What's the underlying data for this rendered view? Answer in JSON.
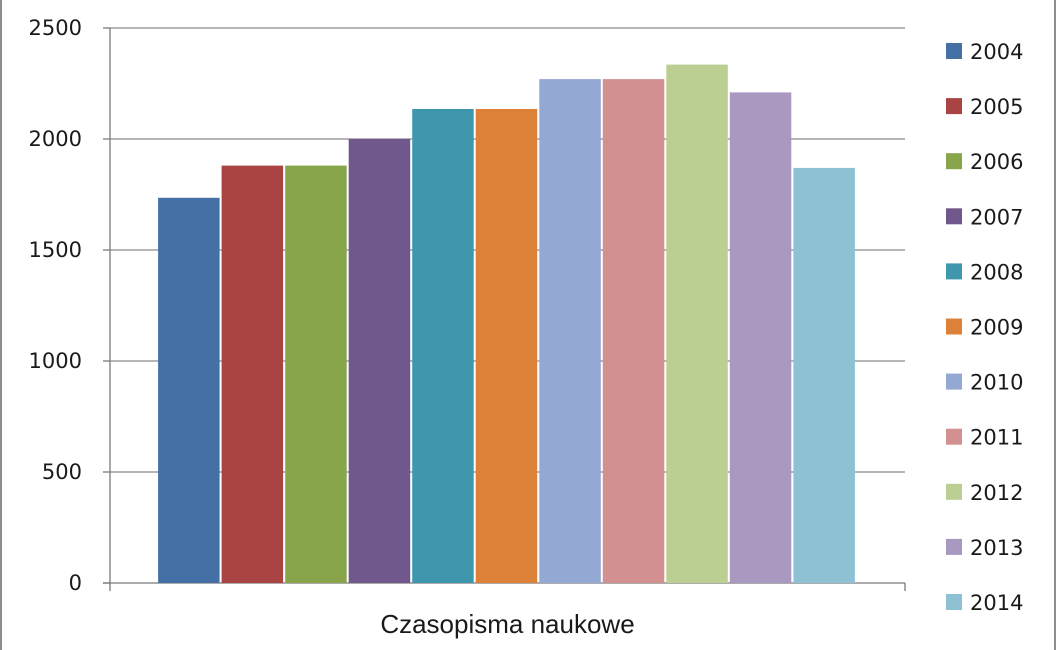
{
  "chart_data": {
    "type": "bar",
    "title": "",
    "xlabel": "",
    "ylabel": "",
    "categories": [
      "Czasopisma naukowe"
    ],
    "series": [
      {
        "name": "2004",
        "values": [
          1735
        ],
        "color": "#4470a6"
      },
      {
        "name": "2005",
        "values": [
          1880
        ],
        "color": "#a94443"
      },
      {
        "name": "2006",
        "values": [
          1880
        ],
        "color": "#88a54b"
      },
      {
        "name": "2007",
        "values": [
          2000
        ],
        "color": "#70578c"
      },
      {
        "name": "2008",
        "values": [
          2135
        ],
        "color": "#3e97ad"
      },
      {
        "name": "2009",
        "values": [
          2135
        ],
        "color": "#dd8139"
      },
      {
        "name": "2010",
        "values": [
          2270
        ],
        "color": "#93a8d2"
      },
      {
        "name": "2011",
        "values": [
          2270
        ],
        "color": "#d39090"
      },
      {
        "name": "2012",
        "values": [
          2335
        ],
        "color": "#bccf92"
      },
      {
        "name": "2013",
        "values": [
          2210
        ],
        "color": "#a998c0"
      },
      {
        "name": "2014",
        "values": [
          1870
        ],
        "color": "#8fc1d4"
      }
    ],
    "ylim": [
      0,
      2500
    ],
    "yticks": [
      "0",
      "500",
      "1000",
      "1500",
      "2000",
      "2500"
    ],
    "grid": true,
    "legend": "right"
  }
}
